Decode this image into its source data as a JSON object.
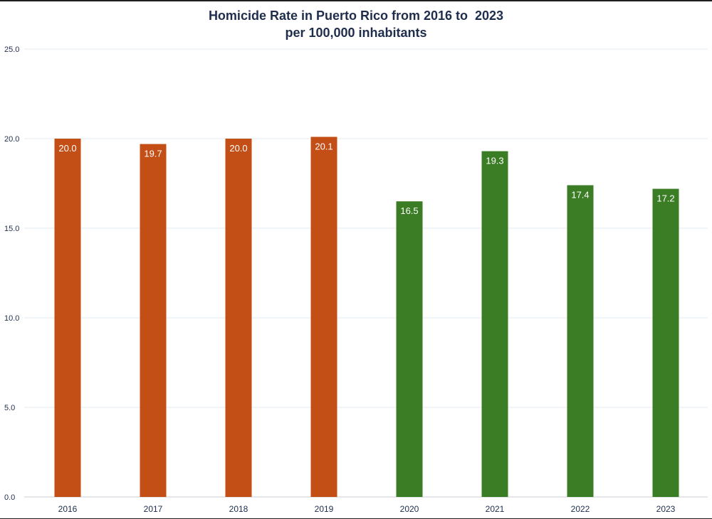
{
  "chart_data": {
    "type": "bar",
    "title": "Homicide Rate in Puerto Rico from 2016 to  2023",
    "subtitle": "per 100,000 inhabitants",
    "xlabel": "",
    "ylabel": "",
    "ylim": [
      0,
      25
    ],
    "yticks": [
      "0.0",
      "5.0",
      "10.0",
      "15.0",
      "20.0",
      "25.0"
    ],
    "categories": [
      "2016",
      "2017",
      "2018",
      "2019",
      "2020",
      "2021",
      "2022",
      "2023"
    ],
    "values": [
      20.0,
      19.7,
      20.0,
      20.1,
      16.5,
      19.3,
      17.4,
      17.2
    ],
    "data_labels": [
      "20.0",
      "19.7",
      "20.0",
      "20.1",
      "16.5",
      "19.3",
      "17.4",
      "17.2"
    ],
    "bar_colors": [
      "#c44f16",
      "#c44f16",
      "#c44f16",
      "#c44f16",
      "#3b7d25",
      "#3b7d25",
      "#3b7d25",
      "#3b7d25"
    ],
    "grid": true,
    "legend": "none"
  }
}
